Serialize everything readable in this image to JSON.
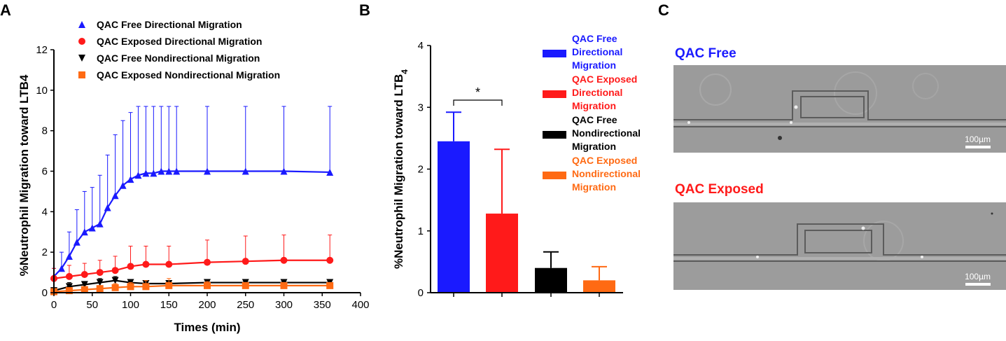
{
  "panels": {
    "a": {
      "letter": "A"
    },
    "b": {
      "letter": "B"
    },
    "c": {
      "letter": "C"
    }
  },
  "colors": {
    "blue": "#1a1aff",
    "red": "#ff1a1a",
    "black": "#000000",
    "orange": "#ff6a13"
  },
  "chart_data": [
    {
      "type": "scatter",
      "panel": "A",
      "title": "",
      "xlabel": "Times (min)",
      "ylabel": "%Neutrophil Migration toward LTB4",
      "xlim": [
        0,
        400
      ],
      "ylim": [
        0,
        12
      ],
      "xticks": [
        0,
        50,
        100,
        150,
        200,
        250,
        300,
        350,
        400
      ],
      "yticks": [
        0,
        2,
        4,
        6,
        8,
        10,
        12
      ],
      "legend_position": "top-left",
      "series": [
        {
          "name": "QAC Free Directional Migration",
          "marker": "triangle-up",
          "color": "#1a1aff",
          "x": [
            0,
            10,
            20,
            30,
            40,
            50,
            60,
            70,
            80,
            90,
            100,
            110,
            120,
            130,
            140,
            150,
            160,
            200,
            250,
            300,
            360
          ],
          "y": [
            0.8,
            1.2,
            1.8,
            2.5,
            3.0,
            3.2,
            3.4,
            4.2,
            4.8,
            5.3,
            5.6,
            5.8,
            5.9,
            5.9,
            6.0,
            6.0,
            6.0,
            6.0,
            6.0,
            6.0,
            5.95
          ],
          "error": [
            0.4,
            0.8,
            1.2,
            1.6,
            2.0,
            2.0,
            2.4,
            2.6,
            3.0,
            3.2,
            3.3,
            3.4,
            3.3,
            3.3,
            3.2,
            3.2,
            3.2,
            3.2,
            3.2,
            3.2,
            3.25
          ]
        },
        {
          "name": "QAC Exposed Directional Migration",
          "marker": "circle",
          "color": "#ff1a1a",
          "x": [
            0,
            20,
            40,
            60,
            80,
            100,
            120,
            150,
            200,
            250,
            300,
            360
          ],
          "y": [
            0.7,
            0.8,
            0.9,
            1.0,
            1.1,
            1.3,
            1.4,
            1.4,
            1.5,
            1.55,
            1.6,
            1.6
          ],
          "error": [
            0.5,
            0.55,
            0.55,
            0.6,
            0.7,
            1.0,
            0.9,
            0.9,
            1.1,
            1.25,
            1.25,
            1.25
          ]
        },
        {
          "name": "QAC Free Nondirectional Migration",
          "marker": "triangle-down",
          "color": "#000000",
          "x": [
            0,
            20,
            40,
            60,
            80,
            100,
            120,
            150,
            200,
            250,
            300,
            360
          ],
          "y": [
            0.1,
            0.3,
            0.4,
            0.5,
            0.6,
            0.5,
            0.45,
            0.45,
            0.5,
            0.5,
            0.5,
            0.5
          ],
          "error": [
            0.1,
            0.2,
            0.15,
            0.2,
            0.2,
            0.15,
            0.15,
            0.1,
            0.1,
            0.1,
            0.1,
            0.1
          ]
        },
        {
          "name": "QAC Exposed Nondirectional Migration",
          "marker": "square",
          "color": "#ff6a13",
          "x": [
            0,
            20,
            40,
            60,
            80,
            100,
            120,
            150,
            200,
            250,
            300,
            360
          ],
          "y": [
            0.05,
            0.1,
            0.15,
            0.2,
            0.25,
            0.3,
            0.3,
            0.35,
            0.35,
            0.35,
            0.35,
            0.35
          ],
          "error": [
            0.05,
            0.1,
            0.15,
            0.15,
            0.2,
            0.2,
            0.3,
            0.35,
            0.2,
            0.1,
            0.1,
            0.1
          ]
        }
      ]
    },
    {
      "type": "bar",
      "panel": "B",
      "title": "",
      "xlabel": "",
      "ylabel": "%Neutrophil Migration toward LTB",
      "ylabel_sub": "4",
      "ylim": [
        0,
        4
      ],
      "yticks": [
        0,
        1,
        2,
        3,
        4
      ],
      "legend_position": "right",
      "categories": [
        "QAC Free Directional Migration",
        "QAC Exposed Directional Migration",
        "QAC Free Nondirectional Migration",
        "QAC Exposed Nondirectional Migration"
      ],
      "legend_lines": [
        [
          "QAC Free",
          "Directional",
          "Migration"
        ],
        [
          "QAC Exposed",
          "Directional",
          "Migration"
        ],
        [
          "QAC Free",
          "Nondirectional",
          "Migration"
        ],
        [
          "QAC Exposed",
          "Nondirectional",
          "Migration"
        ]
      ],
      "values": [
        2.45,
        1.28,
        0.4,
        0.2
      ],
      "errors": [
        0.47,
        1.04,
        0.26,
        0.22
      ],
      "colors": [
        "#1a1aff",
        "#ff1a1a",
        "#000000",
        "#ff6a13"
      ],
      "significance": {
        "between": [
          0,
          1
        ],
        "label": "*"
      }
    }
  ],
  "images": [
    {
      "title": "QAC Free",
      "title_color": "#1a1aff",
      "scale_label": "100µm"
    },
    {
      "title": "QAC Exposed",
      "title_color": "#ff1a1a",
      "scale_label": "100µm"
    }
  ]
}
